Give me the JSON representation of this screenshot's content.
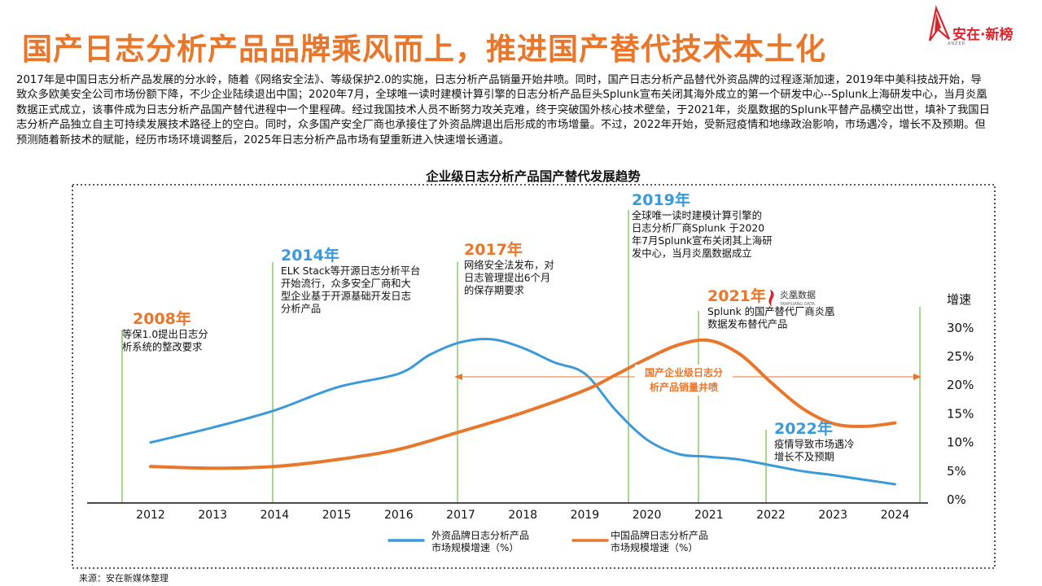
{
  "page": {
    "title": "国产日志分析产品品牌乘风而上，推进国产替代技术本土化",
    "logo_text": "安在·新榜",
    "logo_sub": "ANZER",
    "intro": "2017年是中国日志分析产品发展的分水岭，随着《网络安全法》、等级保护2.0的实施，日志分析产品销量开始井喷。同时，国产日志分析产品替代外资品牌的过程逐渐加速，2019年中美科技战开始，导致众多欧美安全公司市场份额下降，不少企业陆续退出中国；2020年7月，全球唯一读时建模计算引擎的日志分析产品巨头Splunk宣布关闭其海外成立的第一个研发中心--Splunk上海研发中心，当月炎凰数据正式成立，该事件成为日志分析产品国产替代进程中一个里程碑。经过我国技术人员不断努力攻关克难，终于突破国外核心技术壁垒，于2021年，炎凰数据的Splunk平替产品横空出世，填补了我国日志分析产品独立自主可持续发展技术路径上的空白。同时，众多国产安全厂商也承接住了外资品牌退出后形成的市场增量。不过，2022年开始，受新冠疫情和地缘政治影响，市场遇冷，增长不及预期。但预测随着新技术的赋能，经历市场环境调整后，2025年日志分析产品市场有望重新进入快速增长通道。",
    "source": "来源：安在新媒体整理"
  },
  "chart_data": {
    "type": "line",
    "title": "企业级日志分析产品国产替代发展趋势",
    "x": [
      2012,
      2013,
      2014,
      2015,
      2016,
      2017,
      2018,
      2019,
      2020,
      2021,
      2022,
      2023,
      2024
    ],
    "x_ticks": [
      "2012",
      "2013",
      "2014",
      "2015",
      "2016",
      "2017",
      "2018",
      "2019",
      "2020",
      "2021",
      "2022",
      "2023",
      "2024"
    ],
    "ylabel": "增速",
    "y_ticks": [
      "0%",
      "5%",
      "10%",
      "15%",
      "20%",
      "25%",
      "30%"
    ],
    "ylim": [
      0,
      30
    ],
    "series": [
      {
        "name": "外资品牌日志分析产品市场规模增速（%）",
        "color": "#3a9ad9",
        "x": [
          2012,
          2013,
          2014,
          2015,
          2016,
          2016.5,
          2017,
          2017.5,
          2018,
          2018.5,
          2019,
          2019.5,
          2020,
          2020.5,
          2021,
          2021.5,
          2022,
          2022.5,
          2023,
          2023.5,
          2024
        ],
        "values": [
          10,
          12.6,
          15.6,
          19.6,
          22,
          25.3,
          27.5,
          28,
          26.5,
          24,
          22,
          15.6,
          10.5,
          8,
          7.5,
          7,
          6,
          5,
          4.3,
          3.5,
          2.7
        ]
      },
      {
        "name": "中国品牌日志分析产品市场规模增速（%）",
        "color": "#e8762b",
        "x": [
          2012,
          2013,
          2014,
          2015,
          2016,
          2017,
          2018,
          2019,
          2019.5,
          2020,
          2020.5,
          2021,
          2021.5,
          2022,
          2022.5,
          2023,
          2023.5,
          2024
        ],
        "values": [
          5.8,
          5.5,
          5.8,
          7,
          8.8,
          11.9,
          15.2,
          19.1,
          21.8,
          24.6,
          27,
          27.8,
          25.4,
          20.5,
          16,
          13.3,
          12.8,
          13.4
        ]
      }
    ],
    "annotations": [
      {
        "year_label": "2008年",
        "text": [
          "等保1.0提出日志分",
          "析系统的整改要求"
        ]
      },
      {
        "year_label": "2014年",
        "text": [
          "ELK Stack等开源日志分析平台",
          "开始流行，众多安全厂商和大",
          "型企业基于开源基础开发日志",
          "分析产品"
        ]
      },
      {
        "year_label": "2017年",
        "text": [
          "网络安全法发布，对",
          "日志管理提出6个月",
          "的保存期要求"
        ]
      },
      {
        "year_label": "2019年",
        "text": [
          "全球唯一读时建模计算引擎的",
          "日志分析厂商Splunk 于2020",
          "年7月Splunk宣布关闭其上海研",
          "发中心，当月炎凰数据成立"
        ]
      },
      {
        "year_label": "2021年",
        "text": [
          "Splunk 的国产替代厂商炎凰",
          "数据发布替代产品"
        ],
        "logo_text": "炎凰数据",
        "logo_sub": "YANHUANG DATA"
      },
      {
        "year_label": "2022年",
        "text": [
          "疫情导致市场遇冷",
          "增长不及预期"
        ]
      }
    ],
    "range_label": [
      "国产企业级日志分",
      "析产品销量井喷"
    ],
    "legend": [
      {
        "lines": [
          "外资品牌日志分析产品",
          "市场规模增速（%）"
        ]
      },
      {
        "lines": [
          "中国品牌日志分析产品",
          "市场规模增速（%）"
        ]
      }
    ]
  }
}
